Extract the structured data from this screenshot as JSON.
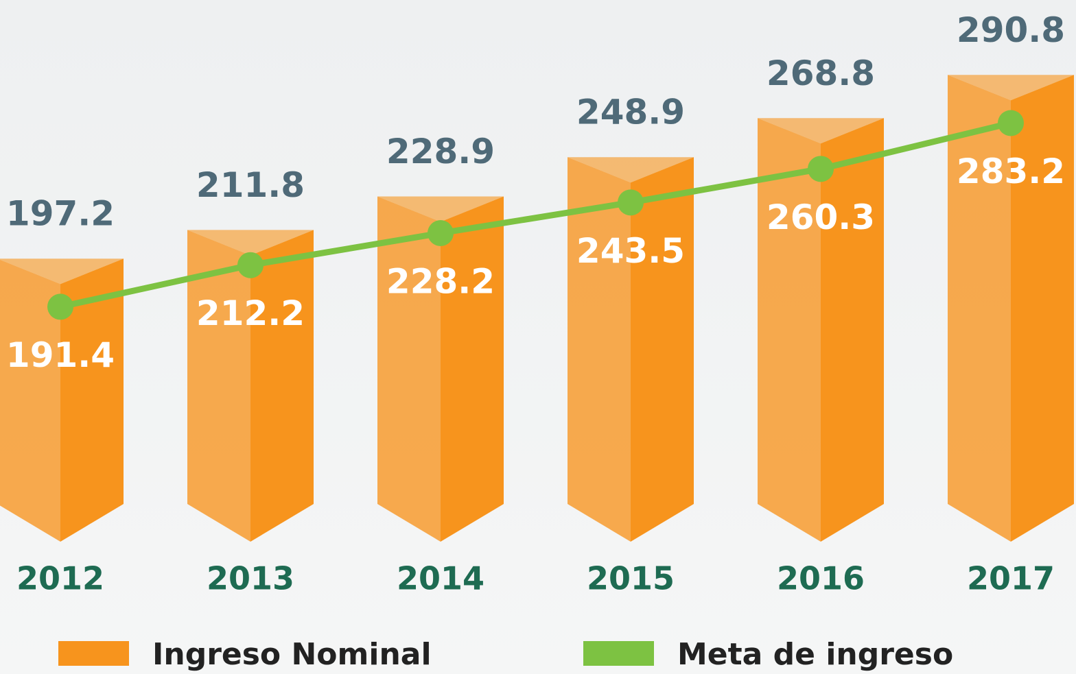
{
  "chart_data": {
    "type": "bar_line",
    "categories": [
      "2012",
      "2013",
      "2014",
      "2015",
      "2016",
      "2017"
    ],
    "series": [
      {
        "name": "Ingreso Nominal",
        "type": "bar",
        "color": "#f7941d",
        "values": [
          197.2,
          211.8,
          228.9,
          248.9,
          268.8,
          290.8
        ]
      },
      {
        "name": "Meta de ingreso",
        "type": "line",
        "axis": "y2",
        "color": "#7dc242",
        "values": [
          191.4,
          212.2,
          228.2,
          243.5,
          260.3,
          283.2
        ]
      }
    ],
    "ylim": [
      53,
      315
    ],
    "y2lim": [
      74,
      331
    ]
  }
}
